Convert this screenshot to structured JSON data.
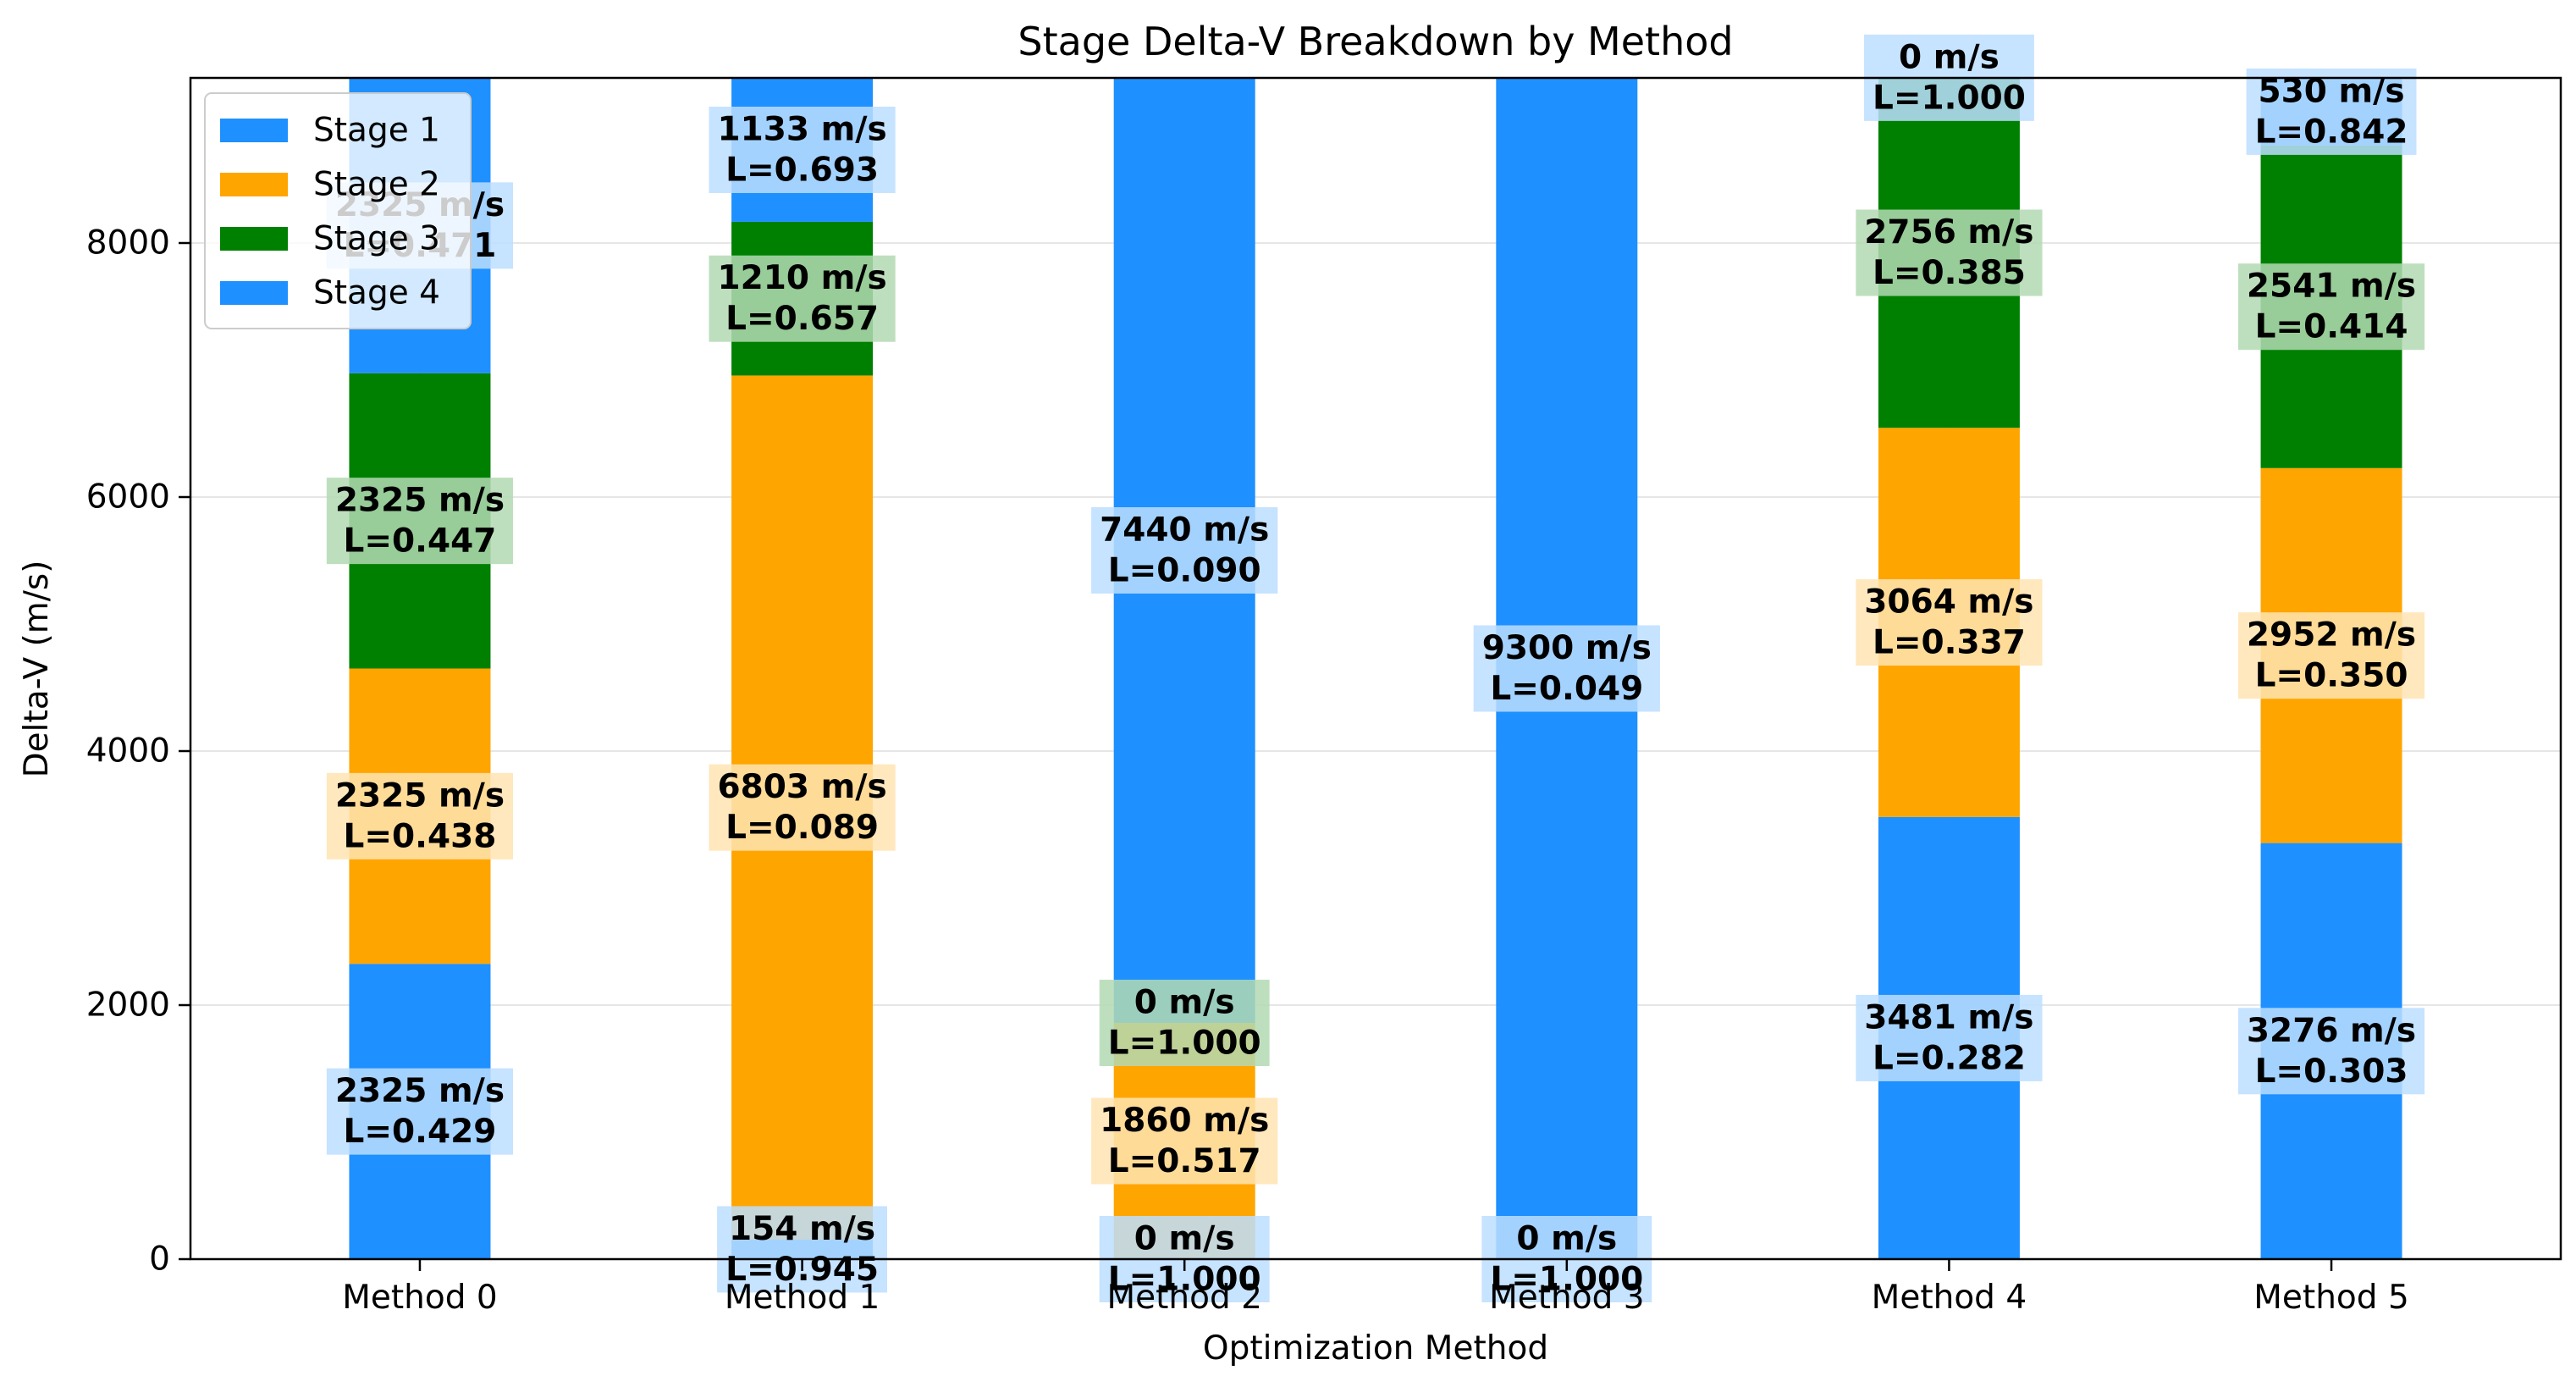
{
  "chart_data": {
    "type": "bar",
    "stacked": true,
    "title": "Stage Delta-V Breakdown by Method",
    "xlabel": "Optimization Method",
    "ylabel": "Delta-V (m/s)",
    "categories": [
      "Method 0",
      "Method 1",
      "Method 2",
      "Method 3",
      "Method 4",
      "Method 5"
    ],
    "ylim": [
      0,
      9300
    ],
    "yticks": [
      0,
      2000,
      4000,
      6000,
      8000
    ],
    "grid": true,
    "legend_position": "top-left",
    "series": [
      {
        "name": "Stage 1",
        "color": "#1e90ff",
        "values": [
          2325,
          154,
          0,
          0,
          3481,
          3276
        ],
        "labels": [
          "2325 m/s\nL=0.429",
          "154 m/s\nL=0.945",
          "0 m/s\nL=1.000",
          "0 m/s\nL=1.000",
          "3481 m/s\nL=0.282",
          "3276 m/s\nL=0.303"
        ]
      },
      {
        "name": "Stage 2",
        "color": "#ffa500",
        "values": [
          2325,
          6803,
          1860,
          0,
          3064,
          2952
        ],
        "labels": [
          "2325 m/s\nL=0.438",
          "6803 m/s\nL=0.089",
          "1860 m/s\nL=0.517",
          "",
          "3064 m/s\nL=0.337",
          "2952 m/s\nL=0.350"
        ]
      },
      {
        "name": "Stage 3",
        "color": "#008000",
        "values": [
          2325,
          1210,
          0,
          0,
          2756,
          2541
        ],
        "labels": [
          "2325 m/s\nL=0.447",
          "1210 m/s\nL=0.657",
          "0 m/s\nL=1.000",
          "",
          "2756 m/s\nL=0.385",
          "2541 m/s\nL=0.414"
        ]
      },
      {
        "name": "Stage 4",
        "color": "#1e90ff",
        "values": [
          2325,
          1133,
          7440,
          9300,
          0,
          530
        ],
        "labels": [
          "2325 m/s\nL=0.471",
          "1133 m/s\nL=0.693",
          "7440 m/s\nL=0.090",
          "9300 m/s\nL=0.049",
          "0 m/s\nL=1.000",
          "530 m/s\nL=0.842"
        ]
      }
    ]
  }
}
